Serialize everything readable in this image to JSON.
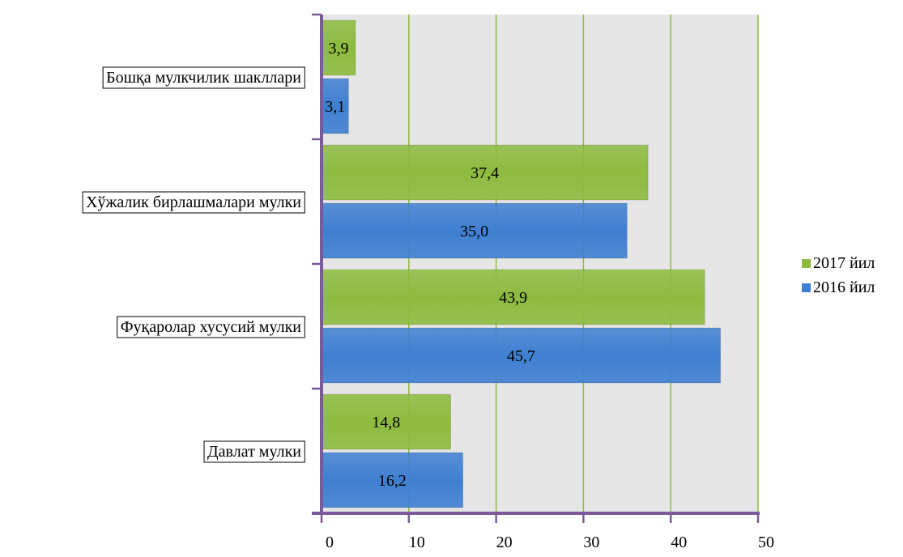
{
  "chart_data": {
    "type": "bar",
    "orientation": "horizontal",
    "categories": [
      "Давлат мулки",
      "Фуқаролар хусусий мулки",
      "Хўжалик бирлашмалари мулки",
      "Бошқа мулкчилик шакллари"
    ],
    "series": [
      {
        "name": "2016 йил",
        "color": "#3f7fd1",
        "values": [
          16.2,
          45.7,
          35.0,
          3.1
        ],
        "labels": [
          "16,2",
          "45,7",
          "35,0",
          "3,1"
        ]
      },
      {
        "name": "2017 йил",
        "color": "#8dbb3f",
        "values": [
          14.8,
          43.9,
          37.4,
          3.9
        ],
        "labels": [
          "14,8",
          "43,9",
          "37,4",
          "3,9"
        ]
      }
    ],
    "xticks": [
      "0",
      "10",
      "20",
      "30",
      "40",
      "50"
    ],
    "xlim": [
      0,
      50
    ],
    "grid": true,
    "legend": "right",
    "title": "",
    "xlabel": "",
    "ylabel": ""
  },
  "colors": {
    "axis": "#7a5a9a",
    "gridline": "#8dbb3f",
    "plot_bg": "#e6e6e6"
  }
}
